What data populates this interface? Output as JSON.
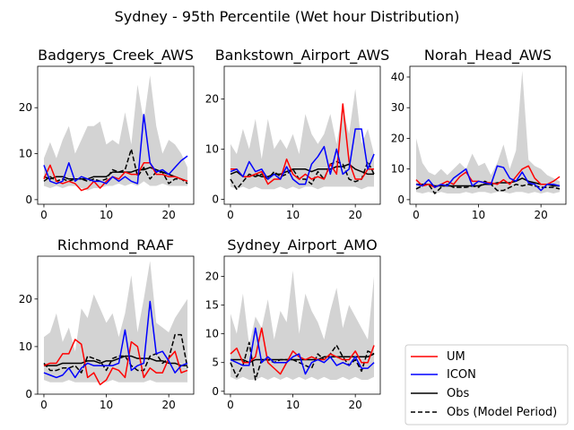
{
  "figure": {
    "title": "Sydney - 95th Percentile (Wet hour Distribution)",
    "legend": {
      "placement": "lower-right",
      "entries": [
        {
          "label": "UM",
          "color": "#ff0000",
          "dash": "solid"
        },
        {
          "label": "ICON",
          "color": "#0000ff",
          "dash": "solid"
        },
        {
          "label": "Obs",
          "color": "#000000",
          "dash": "solid"
        },
        {
          "label": "Obs (Model Period)",
          "color": "#000000",
          "dash": "dashed"
        }
      ]
    },
    "colors": {
      "band": "#d3d3d3",
      "UM": "#ff0000",
      "ICON": "#0000ff",
      "Obs": "#000000"
    }
  },
  "chart_data": [
    {
      "type": "line",
      "title": "Badgerys_Creek_AWS",
      "xlabel": "",
      "ylabel": "",
      "xlim": [
        -1,
        24
      ],
      "ylim": [
        -1,
        29
      ],
      "xticks": [
        0,
        10,
        20
      ],
      "yticks": [
        0,
        10,
        20
      ],
      "x": [
        0,
        1,
        2,
        3,
        4,
        5,
        6,
        7,
        8,
        9,
        10,
        11,
        12,
        13,
        14,
        15,
        16,
        17,
        18,
        19,
        20,
        21,
        22,
        23
      ],
      "band": {
        "lower": [
          3,
          2.5,
          3,
          2.5,
          3,
          3,
          2.5,
          2,
          2.5,
          2.5,
          3,
          3,
          3.5,
          3,
          3.5,
          3,
          4,
          3,
          3,
          3.5,
          3,
          3,
          3,
          3
        ],
        "upper": [
          9,
          12.5,
          9,
          13,
          16,
          10,
          13,
          16,
          16,
          17,
          12,
          13,
          12,
          19,
          12,
          25,
          17,
          27,
          16,
          10,
          13,
          12,
          10,
          7
        ]
      },
      "series": [
        {
          "name": "UM",
          "values": [
            4.5,
            7.5,
            4,
            3.5,
            4,
            3.5,
            2,
            2.5,
            4,
            2.5,
            4,
            5,
            4.5,
            6,
            5.5,
            5.5,
            8,
            8,
            5.5,
            5.5,
            5,
            5,
            4.5,
            4
          ]
        },
        {
          "name": "ICON",
          "values": [
            7.5,
            4,
            3.5,
            4,
            8,
            4,
            5,
            4.5,
            4,
            4,
            3.5,
            5,
            4,
            5,
            4,
            3.5,
            18.5,
            8,
            6,
            6.5,
            5.5,
            7,
            8.5,
            9.5
          ]
        },
        {
          "name": "Obs",
          "values": [
            5,
            4.5,
            5,
            5,
            4.5,
            4.5,
            4.5,
            4.5,
            5,
            5,
            5,
            6,
            6,
            6,
            6,
            6.5,
            6.5,
            7,
            6.5,
            6,
            5.5,
            5,
            4.5,
            4
          ]
        },
        {
          "name": "Obs (Model Period)",
          "values": [
            4,
            5,
            4,
            4.5,
            4,
            4.5,
            4.5,
            4,
            4.5,
            4,
            4.5,
            6.5,
            6,
            6.5,
            11,
            5,
            7,
            4.5,
            6,
            6,
            3.5,
            4.5,
            4.5,
            3.5
          ]
        }
      ]
    },
    {
      "type": "line",
      "title": "Bankstown_Airport_AWS",
      "xlabel": "",
      "ylabel": "",
      "xlim": [
        -1,
        24
      ],
      "ylim": [
        -1,
        26.5
      ],
      "xticks": [
        0,
        10,
        20
      ],
      "yticks": [
        0,
        10,
        20
      ],
      "x": [
        0,
        1,
        2,
        3,
        4,
        5,
        6,
        7,
        8,
        9,
        10,
        11,
        12,
        13,
        14,
        15,
        16,
        17,
        18,
        19,
        20,
        21,
        22,
        23
      ],
      "band": {
        "lower": [
          2.5,
          2,
          2.5,
          2,
          2.5,
          2,
          2,
          2,
          2.5,
          2,
          2.5,
          2,
          2.5,
          2.5,
          2,
          2.5,
          2.5,
          2.5,
          2.5,
          2.5,
          2.5,
          2,
          2.5,
          2.5
        ],
        "upper": [
          11,
          9,
          14,
          10,
          16,
          8,
          16,
          10,
          12,
          10,
          13,
          9,
          17,
          13,
          11,
          13,
          17,
          11,
          18,
          13,
          22,
          11,
          14,
          9
        ]
      },
      "series": [
        {
          "name": "UM",
          "values": [
            6,
            6,
            4.5,
            4.5,
            5,
            5.5,
            3,
            4,
            4,
            8,
            5,
            4,
            5,
            4,
            4.5,
            4,
            7,
            5,
            19,
            7.5,
            4,
            4,
            6,
            6
          ]
        },
        {
          "name": "ICON",
          "values": [
            5.5,
            6,
            4.5,
            7.5,
            5.5,
            6,
            4,
            5,
            4,
            6.5,
            4,
            3,
            3,
            7,
            8.5,
            10.5,
            5,
            10,
            5,
            6,
            14,
            14,
            6,
            9
          ]
        },
        {
          "name": "Obs",
          "values": [
            5,
            5.5,
            4.5,
            4.5,
            5,
            4.5,
            4.5,
            5,
            5,
            5.5,
            6,
            6,
            6,
            5.5,
            6,
            6,
            6,
            6.5,
            6.5,
            7,
            6,
            5.5,
            5,
            5
          ]
        },
        {
          "name": "Obs (Model Period)",
          "values": [
            4,
            2,
            3.5,
            5,
            4.5,
            5,
            4,
            5.5,
            4.5,
            5,
            6,
            4,
            4,
            3,
            5.5,
            4,
            7,
            7.5,
            7,
            4,
            3.5,
            4,
            7.5,
            5
          ]
        }
      ]
    },
    {
      "type": "line",
      "title": "Norah_Head_AWS",
      "xlabel": "",
      "ylabel": "",
      "xlim": [
        -1,
        24
      ],
      "ylim": [
        -1.5,
        43.5
      ],
      "xticks": [
        0,
        10,
        20
      ],
      "yticks": [
        0,
        10,
        20,
        30,
        40
      ],
      "x": [
        0,
        1,
        2,
        3,
        4,
        5,
        6,
        7,
        8,
        9,
        10,
        11,
        12,
        13,
        14,
        15,
        16,
        17,
        18,
        19,
        20,
        21,
        22,
        23
      ],
      "band": {
        "lower": [
          2.5,
          2,
          2.5,
          2,
          2.5,
          2,
          2,
          2,
          2.5,
          2,
          2.5,
          2.5,
          2,
          2.5,
          2.5,
          2,
          2.5,
          2.5,
          2,
          2.5,
          2,
          2.5,
          2,
          2.5
        ],
        "upper": [
          20,
          12,
          9,
          8,
          10,
          8,
          10,
          12,
          10,
          15,
          11,
          12,
          8,
          12,
          18,
          10,
          16,
          42,
          13,
          11,
          10,
          8,
          7,
          6
        ]
      },
      "series": [
        {
          "name": "UM",
          "values": [
            6.5,
            4.5,
            5,
            4,
            5,
            6,
            5,
            7.5,
            9,
            6,
            6,
            5.5,
            5.5,
            5,
            6.5,
            5,
            7.5,
            10,
            11,
            7,
            5,
            5,
            6,
            7.5
          ]
        },
        {
          "name": "ICON",
          "values": [
            5,
            4.5,
            6.5,
            4,
            5,
            4.5,
            7,
            8.5,
            10,
            4.5,
            6,
            5.5,
            5,
            11,
            10.5,
            7,
            6,
            9,
            5.5,
            5,
            3,
            5,
            5,
            4.5
          ]
        },
        {
          "name": "Obs",
          "values": [
            5,
            5,
            5,
            4.5,
            4.5,
            4.5,
            4.5,
            4.5,
            4.5,
            4.5,
            4.5,
            5,
            5,
            5.5,
            5.5,
            5.5,
            6,
            7,
            6,
            5.5,
            5,
            5,
            4.5,
            4.5
          ]
        },
        {
          "name": "Obs (Model Period)",
          "values": [
            3.5,
            4.5,
            5,
            2,
            4,
            5,
            4,
            4,
            4,
            4.5,
            4,
            6,
            5,
            3,
            3,
            4,
            5,
            4.5,
            5,
            4.5,
            4,
            4,
            4,
            3.5
          ]
        }
      ]
    },
    {
      "type": "line",
      "title": "Richmond_RAAF",
      "xlabel": "",
      "ylabel": "",
      "xlim": [
        -1,
        24
      ],
      "ylim": [
        0,
        29
      ],
      "xticks": [
        0,
        10,
        20
      ],
      "yticks": [
        0,
        10,
        20
      ],
      "x": [
        0,
        1,
        2,
        3,
        4,
        5,
        6,
        7,
        8,
        9,
        10,
        11,
        12,
        13,
        14,
        15,
        16,
        17,
        18,
        19,
        20,
        21,
        22,
        23
      ],
      "band": {
        "lower": [
          3,
          2.5,
          2.5,
          2.5,
          3,
          2.5,
          2.5,
          2.5,
          2.5,
          2.5,
          2.5,
          3,
          2.5,
          2.5,
          2.5,
          2.5,
          2.5,
          3,
          2.5,
          2.5,
          2.5,
          2.5,
          2.5,
          2.5
        ],
        "upper": [
          12,
          13,
          17,
          11,
          14,
          9,
          18,
          16,
          21,
          18,
          15,
          17,
          12,
          17,
          25,
          13,
          20,
          28,
          15,
          14,
          13,
          16,
          18,
          20
        ]
      },
      "series": [
        {
          "name": "UM",
          "values": [
            6,
            6.5,
            6.5,
            8.5,
            8.5,
            11.5,
            10.5,
            3.5,
            4.5,
            2,
            3,
            5.5,
            5,
            3.5,
            11,
            10,
            3.5,
            5.5,
            4.5,
            4.5,
            7.5,
            9,
            4.5,
            5
          ]
        },
        {
          "name": "ICON",
          "values": [
            4.5,
            4,
            3.5,
            4,
            5.5,
            3.5,
            5.5,
            6.5,
            6,
            6,
            6,
            6,
            6.5,
            13.5,
            5,
            6,
            6.5,
            19.5,
            8.5,
            9,
            7,
            4.5,
            6,
            6.5
          ]
        },
        {
          "name": "Obs",
          "values": [
            6,
            6,
            6,
            6.5,
            6.5,
            6.5,
            6.5,
            7,
            7,
            6.5,
            7,
            7,
            7.5,
            8,
            8,
            7.5,
            7.5,
            7.5,
            7,
            7,
            6.5,
            6.5,
            6,
            6
          ]
        },
        {
          "name": "Obs (Model Period)",
          "values": [
            6.5,
            5,
            5,
            5.5,
            5.5,
            6,
            4.5,
            8,
            7.5,
            7,
            5,
            7.5,
            8,
            8,
            6,
            5,
            5,
            8,
            8.5,
            6.5,
            7.5,
            12.5,
            12.5,
            5.5
          ]
        }
      ]
    },
    {
      "type": "line",
      "title": "Sydney_Airport_AMO",
      "xlabel": "",
      "ylabel": "",
      "xlim": [
        -1,
        24
      ],
      "ylim": [
        -0.5,
        23.5
      ],
      "xticks": [
        0,
        10,
        20
      ],
      "yticks": [
        0,
        5,
        10,
        15,
        20
      ],
      "x": [
        0,
        1,
        2,
        3,
        4,
        5,
        6,
        7,
        8,
        9,
        10,
        11,
        12,
        13,
        14,
        15,
        16,
        17,
        18,
        19,
        20,
        21,
        22,
        23
      ],
      "band": {
        "lower": [
          2.5,
          2,
          2.5,
          2,
          2,
          2.5,
          2,
          2.5,
          2,
          2.5,
          2,
          2.5,
          2,
          2.5,
          2,
          2.5,
          2,
          2,
          2.5,
          2,
          2.5,
          2,
          2,
          2.5
        ],
        "upper": [
          13.5,
          10,
          17,
          8,
          13,
          11,
          16,
          9,
          14,
          12,
          21,
          10,
          17,
          14,
          12,
          9,
          14,
          18,
          11,
          15,
          13,
          11,
          9,
          20
        ]
      },
      "series": [
        {
          "name": "UM",
          "values": [
            6.5,
            7.5,
            5,
            5,
            6,
            11,
            5,
            4,
            3,
            5,
            7,
            6,
            5.5,
            6,
            5.5,
            5.5,
            6.5,
            6,
            5.5,
            5.5,
            7,
            5,
            5,
            8
          ]
        },
        {
          "name": "ICON",
          "values": [
            5.5,
            5,
            4.5,
            4.5,
            11,
            5,
            6,
            5,
            5,
            5,
            6,
            6.5,
            3,
            5,
            5.5,
            5,
            6,
            4.5,
            5,
            4.5,
            6,
            4,
            4,
            5
          ]
        },
        {
          "name": "Obs",
          "values": [
            5.5,
            5.5,
            5.5,
            5,
            5.5,
            5.5,
            5.5,
            5.5,
            5.5,
            5.5,
            5.5,
            5.5,
            5.5,
            5.5,
            5.5,
            6,
            6,
            6,
            6,
            6,
            6,
            6,
            6,
            6.5
          ]
        },
        {
          "name": "Obs (Model Period)",
          "values": [
            5,
            2.5,
            4.5,
            8.5,
            2,
            5.5,
            5.5,
            5,
            5.5,
            5.5,
            5.5,
            5,
            4.5,
            4,
            6.5,
            5.5,
            6.5,
            8,
            6,
            4.5,
            5.5,
            3.5,
            7,
            6.5
          ]
        }
      ]
    }
  ]
}
